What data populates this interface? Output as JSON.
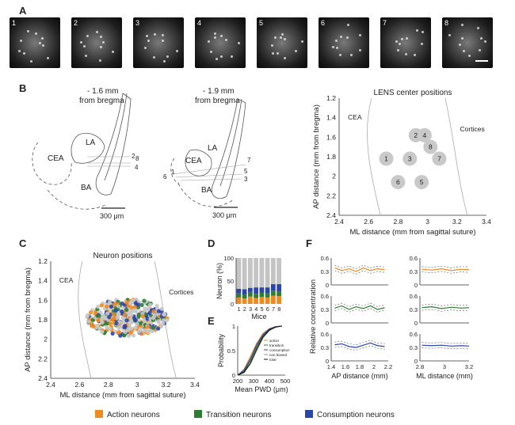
{
  "panels": {
    "A": "A",
    "B": "B",
    "C": "C",
    "D": "D",
    "E": "E",
    "F": "F"
  },
  "panel_a": {
    "thumbs": [
      "1",
      "2",
      "3",
      "4",
      "5",
      "6",
      "7",
      "8"
    ]
  },
  "panel_b": {
    "left_title": "- 1.6 mm",
    "left_subtitle": "from bregma",
    "mid_title": "- 1.9 mm",
    "mid_subtitle": "from bregma",
    "labels": {
      "cea": "CEA",
      "la": "LA",
      "ba": "BA"
    },
    "left_nums": [
      "2",
      "8",
      "4"
    ],
    "mid_nums": [
      "7",
      "1",
      "6",
      "5",
      "3"
    ],
    "scale_left": "300 μm",
    "scale_mid": "300 μm"
  },
  "chart_data": [
    {
      "id": "lens_positions",
      "type": "scatter",
      "title": "LENS center positions",
      "xlabel": "ML distance (mm from sagittal suture)",
      "ylabel": "AP distance (mm from bregma)",
      "xlim": [
        2.4,
        3.4
      ],
      "ylim": [
        1.2,
        2.4
      ],
      "xticks": [
        "2.4",
        "2.6",
        "2.8",
        "3",
        "3.2",
        "3.4"
      ],
      "yticks": [
        "1.2",
        "1.4",
        "1.6",
        "1.8",
        "2",
        "2.2",
        "2.4"
      ],
      "annotations": [
        "CEA",
        "Cortices"
      ],
      "points": [
        {
          "label": "1",
          "x": 2.72,
          "y": 1.82
        },
        {
          "label": "2",
          "x": 2.92,
          "y": 1.58
        },
        {
          "label": "3",
          "x": 2.88,
          "y": 1.82
        },
        {
          "label": "4",
          "x": 2.98,
          "y": 1.58
        },
        {
          "label": "5",
          "x": 2.96,
          "y": 2.06
        },
        {
          "label": "6",
          "x": 2.8,
          "y": 2.06
        },
        {
          "label": "7",
          "x": 3.08,
          "y": 1.82
        },
        {
          "label": "8",
          "x": 3.02,
          "y": 1.7
        }
      ]
    },
    {
      "id": "neuron_positions",
      "type": "scatter",
      "title": "Neuron positions",
      "xlabel": "ML distance (mm from sagittal suture)",
      "ylabel": "AP distance (mm from bregma)",
      "xlim": [
        2.4,
        3.4
      ],
      "ylim": [
        1.2,
        2.4
      ],
      "xticks": [
        "2.4",
        "2.6",
        "2.8",
        "3",
        "3.2",
        "3.4"
      ],
      "yticks": [
        "1.2",
        "1.4",
        "1.6",
        "1.8",
        "2",
        "2.2",
        "2.4"
      ],
      "annotations": [
        "CEA",
        "Cortices"
      ],
      "series": [
        {
          "name": "Non biased",
          "color": "#c8c8c8"
        },
        {
          "name": "Action neurons",
          "color": "#ef8a1e"
        },
        {
          "name": "Transition neurons",
          "color": "#2e7d32"
        },
        {
          "name": "Consumption neurons",
          "color": "#2a46a8"
        }
      ],
      "cloud": {
        "x_center": 2.93,
        "y_center": 1.78,
        "x_spread": 0.28,
        "y_spread": 0.35
      }
    },
    {
      "id": "neuron_percent",
      "type": "bar",
      "stacked": true,
      "ylabel": "Neuron (%)",
      "xlabel": "Mice",
      "ylim": [
        0,
        100
      ],
      "yticks": [
        "0",
        "50",
        "100"
      ],
      "categories": [
        "1",
        "2",
        "3",
        "4",
        "5",
        "6",
        "7",
        "8"
      ],
      "series": [
        {
          "name": "action",
          "color": "#ef8a1e",
          "values": [
            14,
            12,
            16,
            13,
            15,
            14,
            18,
            17
          ]
        },
        {
          "name": "transition",
          "color": "#2e7d32",
          "values": [
            9,
            8,
            10,
            9,
            10,
            9,
            11,
            10
          ]
        },
        {
          "name": "consumption",
          "color": "#2a46a8",
          "values": [
            10,
            12,
            9,
            14,
            11,
            13,
            14,
            16
          ]
        },
        {
          "name": "non biased",
          "color": "#c4c4c4",
          "values": [
            67,
            68,
            65,
            64,
            64,
            64,
            57,
            57
          ]
        }
      ]
    },
    {
      "id": "pwd_cdf",
      "type": "line",
      "xlabel": "Mean PWD (μm)",
      "ylabel": "Probability",
      "xlim": [
        200,
        500
      ],
      "ylim": [
        0,
        1
      ],
      "xticks": [
        "200",
        "300",
        "400",
        "500"
      ],
      "yticks": [
        "0",
        "0.5",
        "1"
      ],
      "legend": [
        "action",
        "transition",
        "consumption",
        "non biased",
        "total"
      ],
      "series": [
        {
          "name": "action",
          "color": "#ef8a1e",
          "x": [
            200,
            240,
            280,
            320,
            360,
            400,
            440,
            480
          ],
          "values": [
            0,
            0.12,
            0.38,
            0.65,
            0.85,
            0.95,
            0.99,
            1
          ]
        },
        {
          "name": "transition",
          "color": "#2e7d32",
          "x": [
            200,
            240,
            280,
            320,
            360,
            400,
            440,
            480
          ],
          "values": [
            0,
            0.08,
            0.3,
            0.58,
            0.8,
            0.93,
            0.98,
            1
          ]
        },
        {
          "name": "consumption",
          "color": "#2a46a8",
          "x": [
            200,
            240,
            280,
            320,
            360,
            400,
            440,
            480
          ],
          "values": [
            0,
            0.1,
            0.33,
            0.62,
            0.83,
            0.94,
            0.99,
            1
          ]
        },
        {
          "name": "non biased",
          "color": "#999999",
          "x": [
            200,
            240,
            280,
            320,
            360,
            400,
            440,
            480
          ],
          "values": [
            0,
            0.05,
            0.22,
            0.5,
            0.76,
            0.91,
            0.98,
            1
          ]
        },
        {
          "name": "total",
          "color": "#111111",
          "x": [
            200,
            240,
            280,
            320,
            360,
            400,
            440,
            480
          ],
          "values": [
            0,
            0.06,
            0.25,
            0.53,
            0.78,
            0.92,
            0.98,
            1
          ]
        }
      ]
    },
    {
      "id": "relative_concentration",
      "type": "line",
      "ylabel": "Relative concentration",
      "xlabel_left": "AP distance (mm)",
      "xlabel_right": "ML distance (mm)",
      "ylim": [
        0,
        0.6
      ],
      "yticks": [
        "0",
        "0.3",
        "0.6"
      ],
      "ap_xticks": [
        "1.4",
        "1.6",
        "1.8",
        "2",
        "2.2"
      ],
      "ml_xticks": [
        "2.8",
        "3",
        "3.2"
      ],
      "ap_x": [
        1.45,
        1.55,
        1.65,
        1.75,
        1.85,
        1.95,
        2.05,
        2.15
      ],
      "ml_x": [
        2.72,
        2.82,
        2.92,
        3.02,
        3.12,
        3.2
      ],
      "rows": [
        {
          "name": "action",
          "color": "#ef8a1e",
          "ap": [
            0.38,
            0.32,
            0.36,
            0.3,
            0.38,
            0.32,
            0.36,
            0.34
          ],
          "ml": [
            0.35,
            0.33,
            0.36,
            0.32,
            0.35,
            0.34
          ]
        },
        {
          "name": "transition",
          "color": "#2e7d32",
          "ap": [
            0.33,
            0.38,
            0.3,
            0.36,
            0.32,
            0.38,
            0.3,
            0.34
          ],
          "ml": [
            0.34,
            0.36,
            0.32,
            0.35,
            0.33,
            0.34
          ]
        },
        {
          "name": "consumption",
          "color": "#2a46a8",
          "ap": [
            0.36,
            0.38,
            0.32,
            0.3,
            0.35,
            0.4,
            0.34,
            0.32
          ],
          "ml": [
            0.35,
            0.34,
            0.35,
            0.33,
            0.34,
            0.33
          ]
        }
      ]
    }
  ],
  "legend": {
    "action": "Action neurons",
    "transition": "Transition neurons",
    "consumption": "Consumption neurons",
    "colors": {
      "action": "#ef8a1e",
      "transition": "#2e7d32",
      "consumption": "#2a46a8"
    }
  }
}
